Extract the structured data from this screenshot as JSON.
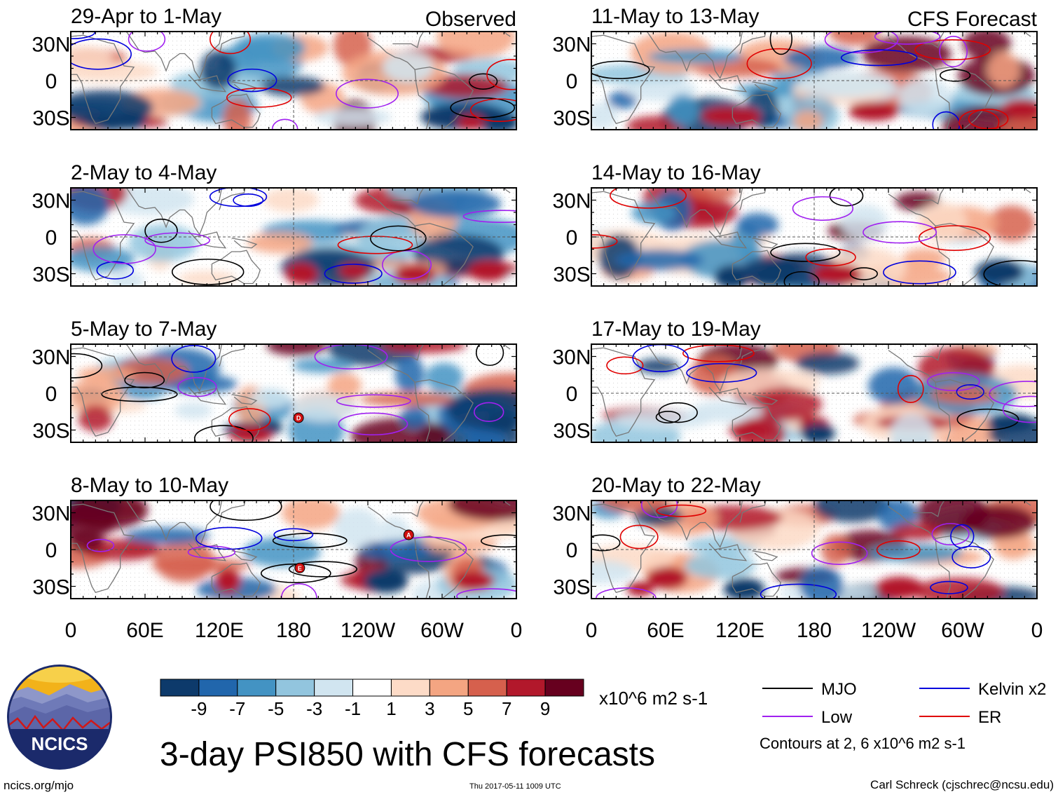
{
  "chart_data": {
    "type": "heatmap",
    "title": "3-day PSI850 with CFS forecasts",
    "variable": "PSI850",
    "units": "x10^6 m2 s-1",
    "observed_label": "Observed",
    "forecast_label": "CFS Forecast",
    "x_ticks": [
      "0",
      "60E",
      "120E",
      "180",
      "120W",
      "60W",
      "0"
    ],
    "y_ticks": [
      "30N",
      "0",
      "30S"
    ],
    "xlim": [
      0,
      360
    ],
    "ylim": [
      -40,
      40
    ],
    "panels": [
      {
        "period": "29-Apr to 1-May",
        "source": "Observed"
      },
      {
        "period": "2-May to 4-May",
        "source": "Observed"
      },
      {
        "period": "5-May to 7-May",
        "source": "Observed"
      },
      {
        "period": "8-May to 10-May",
        "source": "Observed"
      },
      {
        "period": "11-May to 13-May",
        "source": "CFS Forecast"
      },
      {
        "period": "14-May to 16-May",
        "source": "CFS Forecast"
      },
      {
        "period": "17-May to 19-May",
        "source": "CFS Forecast"
      },
      {
        "period": "20-May to 22-May",
        "source": "CFS Forecast"
      }
    ],
    "colorbar": {
      "tick_labels": [
        "-9",
        "-7",
        "-5",
        "-3",
        "-1",
        "1",
        "3",
        "5",
        "7",
        "9"
      ],
      "colors": [
        "#0d3a6b",
        "#2166ac",
        "#4393c3",
        "#92c5de",
        "#d1e5f0",
        "#ffffff",
        "#fddbc7",
        "#f4a582",
        "#d6604d",
        "#b2182b",
        "#67001f"
      ]
    },
    "legend": [
      {
        "label": "MJO",
        "color": "#000000"
      },
      {
        "label": "Kelvin x2",
        "color": "#0000dd"
      },
      {
        "label": "Low",
        "color": "#a020f0"
      },
      {
        "label": "ER",
        "color": "#e00000"
      }
    ],
    "contour_note": "Contours at 2, 6 x10^6 m2 s-1",
    "storm_markers": [
      "D",
      "A",
      "E"
    ]
  },
  "footer": {
    "logo_text": "NCICS",
    "url": "ncics.org/mjo",
    "timestamp": "Thu 2017-05-11 1009 UTC",
    "credit": "Carl Schreck (cjschrec@ncsu.edu)"
  }
}
